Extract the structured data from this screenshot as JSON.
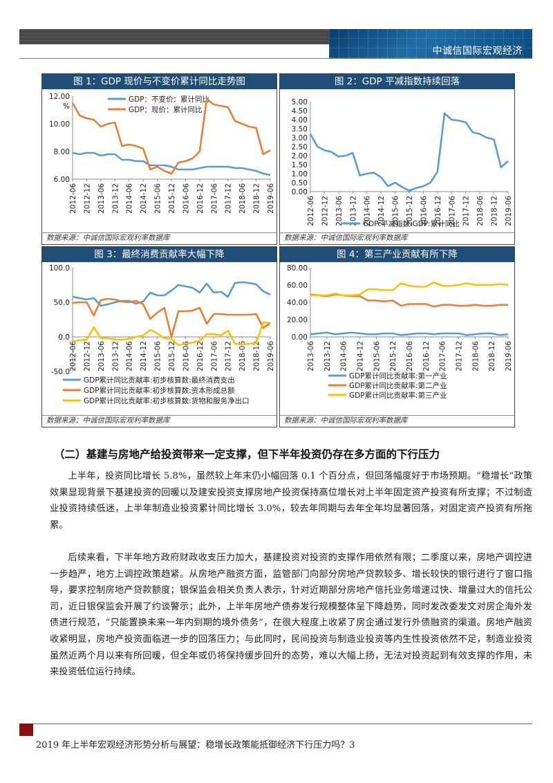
{
  "header": {
    "brand": "中诚信国际宏观经济"
  },
  "charts": [
    {
      "title": "图 1：GDP 现价与不变价累计同比走势图",
      "source": "数据来源：中诚信国际宏观利率数据库"
    },
    {
      "title": "图 2：GDP 平减指数持续回落",
      "source": "数据来源：中诚信国际宏观利率数据库"
    },
    {
      "title": "图 3：最终消费贡献率大幅下降",
      "source": "数据来源：中诚信国际宏观利率数据库"
    },
    {
      "title": "图 4：第三产业贡献有所下降",
      "source": "数据来源：中诚信国际宏观利率数据库"
    }
  ],
  "chart_data": [
    {
      "type": "line",
      "unit": "%",
      "ylim": [
        6,
        12
      ],
      "yticks": [
        "6.00",
        "8.00",
        "10.00",
        "12.00"
      ],
      "x": [
        "2012-06",
        "2012-09",
        "2012-12",
        "2013-03",
        "2013-06",
        "2013-09",
        "2013-12",
        "2014-03",
        "2014-06",
        "2014-09",
        "2014-12",
        "2015-03",
        "2015-06",
        "2015-09",
        "2015-12",
        "2016-03",
        "2016-06",
        "2016-09",
        "2016-12",
        "2017-03",
        "2017-06",
        "2017-09",
        "2017-12",
        "2018-03",
        "2018-06",
        "2018-09",
        "2018-12",
        "2019-03",
        "2019-06"
      ],
      "xticks": [
        "2012-06",
        "2012-12",
        "2013-06",
        "2013-12",
        "2014-06",
        "2014-12",
        "2015-06",
        "2015-12",
        "2016-06",
        "2016-12",
        "2017-06",
        "2017-12",
        "2018-06",
        "2018-12",
        "2019-06"
      ],
      "series": [
        {
          "name": "GDP：不变价：累计同比",
          "color": "#5b9bd5",
          "values": [
            7.9,
            7.8,
            7.9,
            7.9,
            7.7,
            7.8,
            7.8,
            7.4,
            7.4,
            7.3,
            7.3,
            7.0,
            7.0,
            7.0,
            6.9,
            6.7,
            6.7,
            6.7,
            6.8,
            6.9,
            6.9,
            6.9,
            6.9,
            6.8,
            6.8,
            6.7,
            6.6,
            6.4,
            6.3
          ]
        },
        {
          "name": "GDP：现价：累计同比",
          "color": "#ed7d31",
          "values": [
            11.5,
            10.6,
            10.4,
            10.3,
            9.8,
            10.0,
            10.1,
            8.4,
            8.5,
            8.4,
            8.2,
            6.7,
            6.9,
            6.6,
            6.4,
            7.2,
            7.3,
            7.5,
            8.0,
            11.8,
            11.4,
            11.3,
            11.2,
            10.2,
            10.0,
            9.8,
            9.7,
            7.8,
            8.1
          ]
        }
      ]
    },
    {
      "type": "line",
      "ylim": [
        0,
        5
      ],
      "yticks": [
        "0.00",
        "0.50",
        "1.00",
        "1.50",
        "2.00",
        "2.50",
        "3.00",
        "3.50",
        "4.00",
        "4.50",
        "5.00"
      ],
      "x": [
        "2012-06",
        "2012-09",
        "2012-12",
        "2013-03",
        "2013-06",
        "2013-09",
        "2013-12",
        "2014-03",
        "2014-06",
        "2014-09",
        "2014-12",
        "2015-03",
        "2015-06",
        "2015-09",
        "2015-12",
        "2016-03",
        "2016-06",
        "2016-09",
        "2016-12",
        "2017-03",
        "2017-06",
        "2017-09",
        "2017-12",
        "2018-03",
        "2018-06",
        "2018-09",
        "2018-12",
        "2019-03",
        "2019-06"
      ],
      "xticks": [
        "2012-06",
        "2012-12",
        "2013-06",
        "2013-12",
        "2014-06",
        "2014-12",
        "2015-06",
        "2015-12",
        "2016-06",
        "2016-12",
        "2017-06",
        "2017-12",
        "2018-06",
        "2018-12",
        "2019-06"
      ],
      "series": [
        {
          "name": "GDP:平减指数:GDP:累计同比",
          "color": "#5b9bd5",
          "values": [
            3.2,
            2.5,
            2.3,
            2.2,
            1.95,
            2.0,
            2.15,
            0.9,
            1.0,
            1.05,
            0.8,
            0.3,
            0.5,
            0.25,
            0.05,
            0.2,
            0.3,
            0.5,
            1.1,
            4.35,
            4.0,
            3.95,
            3.85,
            3.3,
            3.2,
            3.0,
            2.9,
            1.35,
            1.7
          ]
        }
      ]
    },
    {
      "type": "line",
      "ylim": [
        -50,
        100
      ],
      "yticks": [
        "-50.0",
        "0.0",
        "50.0",
        "100.0"
      ],
      "x": [
        "2012-06",
        "2012-09",
        "2012-12",
        "2013-03",
        "2013-06",
        "2013-09",
        "2013-12",
        "2014-03",
        "2014-06",
        "2014-09",
        "2014-12",
        "2015-03",
        "2015-06",
        "2015-09",
        "2015-12",
        "2016-03",
        "2016-06",
        "2016-09",
        "2016-12",
        "2017-03",
        "2017-06",
        "2017-09",
        "2017-12",
        "2018-03",
        "2018-06",
        "2018-09",
        "2018-12",
        "2019-03",
        "2019-06"
      ],
      "xticks": [
        "2012-06",
        "2012-12",
        "2013-06",
        "2013-12",
        "2014-06",
        "2014-12",
        "2015-06",
        "2015-12",
        "2016-06",
        "2016-12",
        "2017-06",
        "2017-12",
        "2018-06",
        "2018-12",
        "2019-06"
      ],
      "series": [
        {
          "name": "GDP累计同比贡献率:初步核算数:最终消费支出",
          "color": "#5b9bd5",
          "values": [
            58,
            56,
            54,
            56,
            45,
            47,
            50,
            52,
            52,
            48,
            51,
            64,
            60,
            60,
            67,
            75,
            73,
            71,
            64,
            77,
            64,
            65,
            58,
            78,
            79,
            78,
            76,
            66,
            61
          ]
        },
        {
          "name": "GDP累计同比贡献率:初步核算数:资本形成总额",
          "color": "#ed7d31",
          "values": [
            49,
            50,
            50,
            31,
            53,
            55,
            54,
            51,
            50,
            52,
            47,
            26,
            35,
            42,
            0,
            37,
            37,
            38,
            42,
            19,
            33,
            33,
            32,
            32,
            32,
            32,
            33,
            13,
            20
          ]
        },
        {
          "name": "GDP累计同比贡献率:初步核算数:货物和服务净出口",
          "color": "#ffc000",
          "values": [
            -7,
            -5,
            -4,
            14,
            -2,
            -2,
            -4,
            -4,
            -3,
            0,
            2,
            10,
            5,
            -2,
            -3,
            -12,
            -10,
            -8,
            -6,
            4,
            4,
            2,
            9,
            -10,
            -11,
            -10,
            -9,
            21,
            20
          ]
        }
      ]
    },
    {
      "type": "line",
      "ylim": [
        0,
        80
      ],
      "yticks": [
        "0.00",
        "20.00",
        "40.00",
        "60.00",
        "80.00"
      ],
      "x": [
        "2013-06",
        "2013-09",
        "2013-12",
        "2014-03",
        "2014-06",
        "2014-09",
        "2014-12",
        "2015-03",
        "2015-06",
        "2015-09",
        "2015-12",
        "2016-03",
        "2016-06",
        "2016-09",
        "2016-12",
        "2017-03",
        "2017-06",
        "2017-09",
        "2017-12",
        "2018-03",
        "2018-06",
        "2018-09",
        "2018-12",
        "2019-03",
        "2019-06"
      ],
      "xticks": [
        "2013-06",
        "2013-12",
        "2014-06",
        "2014-12",
        "2015-06",
        "2015-12",
        "2016-06",
        "2016-12",
        "2017-06",
        "2017-12",
        "2018-06",
        "2018-12",
        "2019-06"
      ],
      "series": [
        {
          "name": "GDP累计同比贡献率:第一产业",
          "color": "#5b9bd5",
          "values": [
            3,
            4,
            5,
            3,
            4,
            5,
            4,
            3,
            3,
            4,
            4,
            2,
            3,
            4,
            4,
            3,
            4,
            4,
            4,
            2,
            3,
            4,
            4,
            2,
            3
          ]
        },
        {
          "name": "GDP累计同比贡献率:第二产业",
          "color": "#ed7d31",
          "values": [
            49,
            48,
            47,
            49,
            48,
            47,
            47,
            42,
            42,
            41,
            42,
            36,
            38,
            38,
            38,
            35,
            37,
            37,
            36,
            36,
            37,
            36,
            36,
            37,
            37
          ]
        },
        {
          "name": "GDP累计同比贡献率:第三产业",
          "color": "#ffc000",
          "values": [
            48,
            48,
            48,
            50,
            48,
            48,
            49,
            55,
            55,
            54,
            54,
            62,
            59,
            58,
            58,
            63,
            59,
            59,
            60,
            62,
            60,
            60,
            60,
            61,
            60
          ]
        }
      ]
    }
  ],
  "section": {
    "heading": "（二）基建与房地产给投资带来一定支撑，但下半年投资仍存在多方面的下行压力"
  },
  "paragraphs": [
    "上半年，投资同比增长 5.8%，虽然较上年末仍小幅回落 0.1 个百分点，但回落幅度好于市场预期。“稳增长”政策效果显现背景下基建投资的回暖以及建安投资支撑房地产投资保持高位增长对上半年固定资产投资有所支撑；不过制造业投资持续低迷，上半年制造业投资累计同比增长 3.0%，较去年同期与去年全年均显著回落，对固定资产投资有所拖累。",
    "后续来看，下半年地方政府财政收支压力加大，基建投资对投资的支撑作用依然有限；二季度以来，房地产调控进一步趋严，地方上调控政策趋紧。从房地产融资方面，监管部门向部分房地产贷款较多、增长较快的银行进行了窗口指导，要求控制房地产贷款额度；银保监会相关负责人表示，针对近期部分房地产信托业务增速过快、增量过大的信托公司，近日银保监会开展了约谈警示；此外，上半年房地产债券发行规模整体呈下降趋势，同时发改委发文对房企海外发债进行规范，“只能置换未来一年内到期的境外债务”，在很大程度上收紧了房企通过发行外债融资的渠道。房地产融资收紧明显，房地产投资面临进一步的回落压力；与此同时，民间投资与制造业投资等内生性投资依然不足，制造业投资虽然近两个月以来有所回暖，但全年或仍将保持缓步回升的态势，难以大幅上扬，无法对投资起到有效支撑的作用，未来投资低位运行持续。"
  ],
  "footer": {
    "text": "2019 年上半年宏观经济形势分析与展望：稳增长政策能抵御经济下行压力吗？3"
  }
}
